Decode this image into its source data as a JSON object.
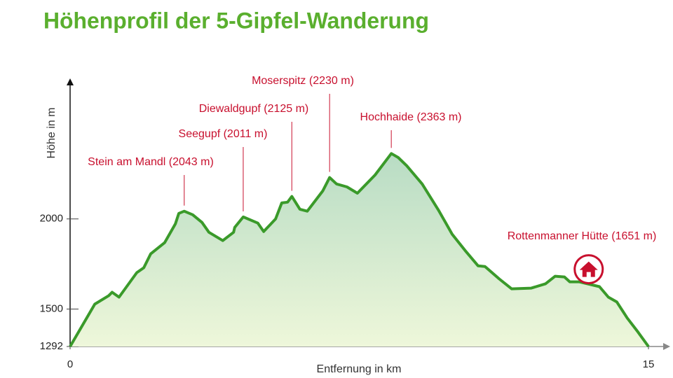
{
  "chart_data": {
    "type": "line",
    "title": "Höhenprofil der 5-Gipfel-Wanderung",
    "x_label": "Entfernung in km",
    "y_label": "Höhe in m",
    "xlim": [
      0,
      15
    ],
    "ylim": [
      1292,
      2780
    ],
    "xticks": [
      0,
      15
    ],
    "yticks": [
      1292,
      1500,
      2000
    ],
    "series": [
      {
        "name": "Höhenprofil",
        "color": "#3a9a2a",
        "x": [
          0,
          0.64,
          1.0,
          1.09,
          1.27,
          1.73,
          1.91,
          2.09,
          2.45,
          2.73,
          2.82,
          2.96,
          3.18,
          3.42,
          3.6,
          3.96,
          4.24,
          4.27,
          4.49,
          4.87,
          5.02,
          5.33,
          5.49,
          5.64,
          5.75,
          5.96,
          6.15,
          6.55,
          6.73,
          6.91,
          7.18,
          7.45,
          7.91,
          8.33,
          8.51,
          8.73,
          9.13,
          9.55,
          9.91,
          10.27,
          10.58,
          10.76,
          11.13,
          11.45,
          11.96,
          12.33,
          12.58,
          12.82,
          12.96,
          13.2,
          13.73,
          13.96,
          14.18,
          14.45,
          14.73,
          15
        ],
        "values": [
          1292,
          1527,
          1574,
          1593,
          1566,
          1702,
          1729,
          1806,
          1868,
          1973,
          2031,
          2043,
          2023,
          1981,
          1926,
          1880,
          1926,
          1953,
          2011,
          1977,
          1930,
          2000,
          2089,
          2093,
          2125,
          2054,
          2043,
          2155,
          2230,
          2194,
          2178,
          2143,
          2244,
          2363,
          2341,
          2295,
          2194,
          2050,
          1915,
          1818,
          1740,
          1736,
          1667,
          1612,
          1616,
          1640,
          1682,
          1678,
          1651,
          1651,
          1624,
          1566,
          1539,
          1450,
          1372,
          1292
        ]
      }
    ],
    "annotations": [
      {
        "label": "Stein am Mandl (2043 m)",
        "x": 2.96,
        "y": 2043
      },
      {
        "label": "Seegupf (2011 m)",
        "x": 4.49,
        "y": 2011
      },
      {
        "label": "Diewaldgupf (2125 m)",
        "x": 5.75,
        "y": 2125
      },
      {
        "label": "Moserspitz (2230 m)",
        "x": 6.73,
        "y": 2230
      },
      {
        "label": "Hochhaide (2363 m)",
        "x": 8.33,
        "y": 2363
      },
      {
        "label": "Rottenmanner Hütte (1651 m)",
        "x": 13.45,
        "y": 1651
      }
    ]
  }
}
